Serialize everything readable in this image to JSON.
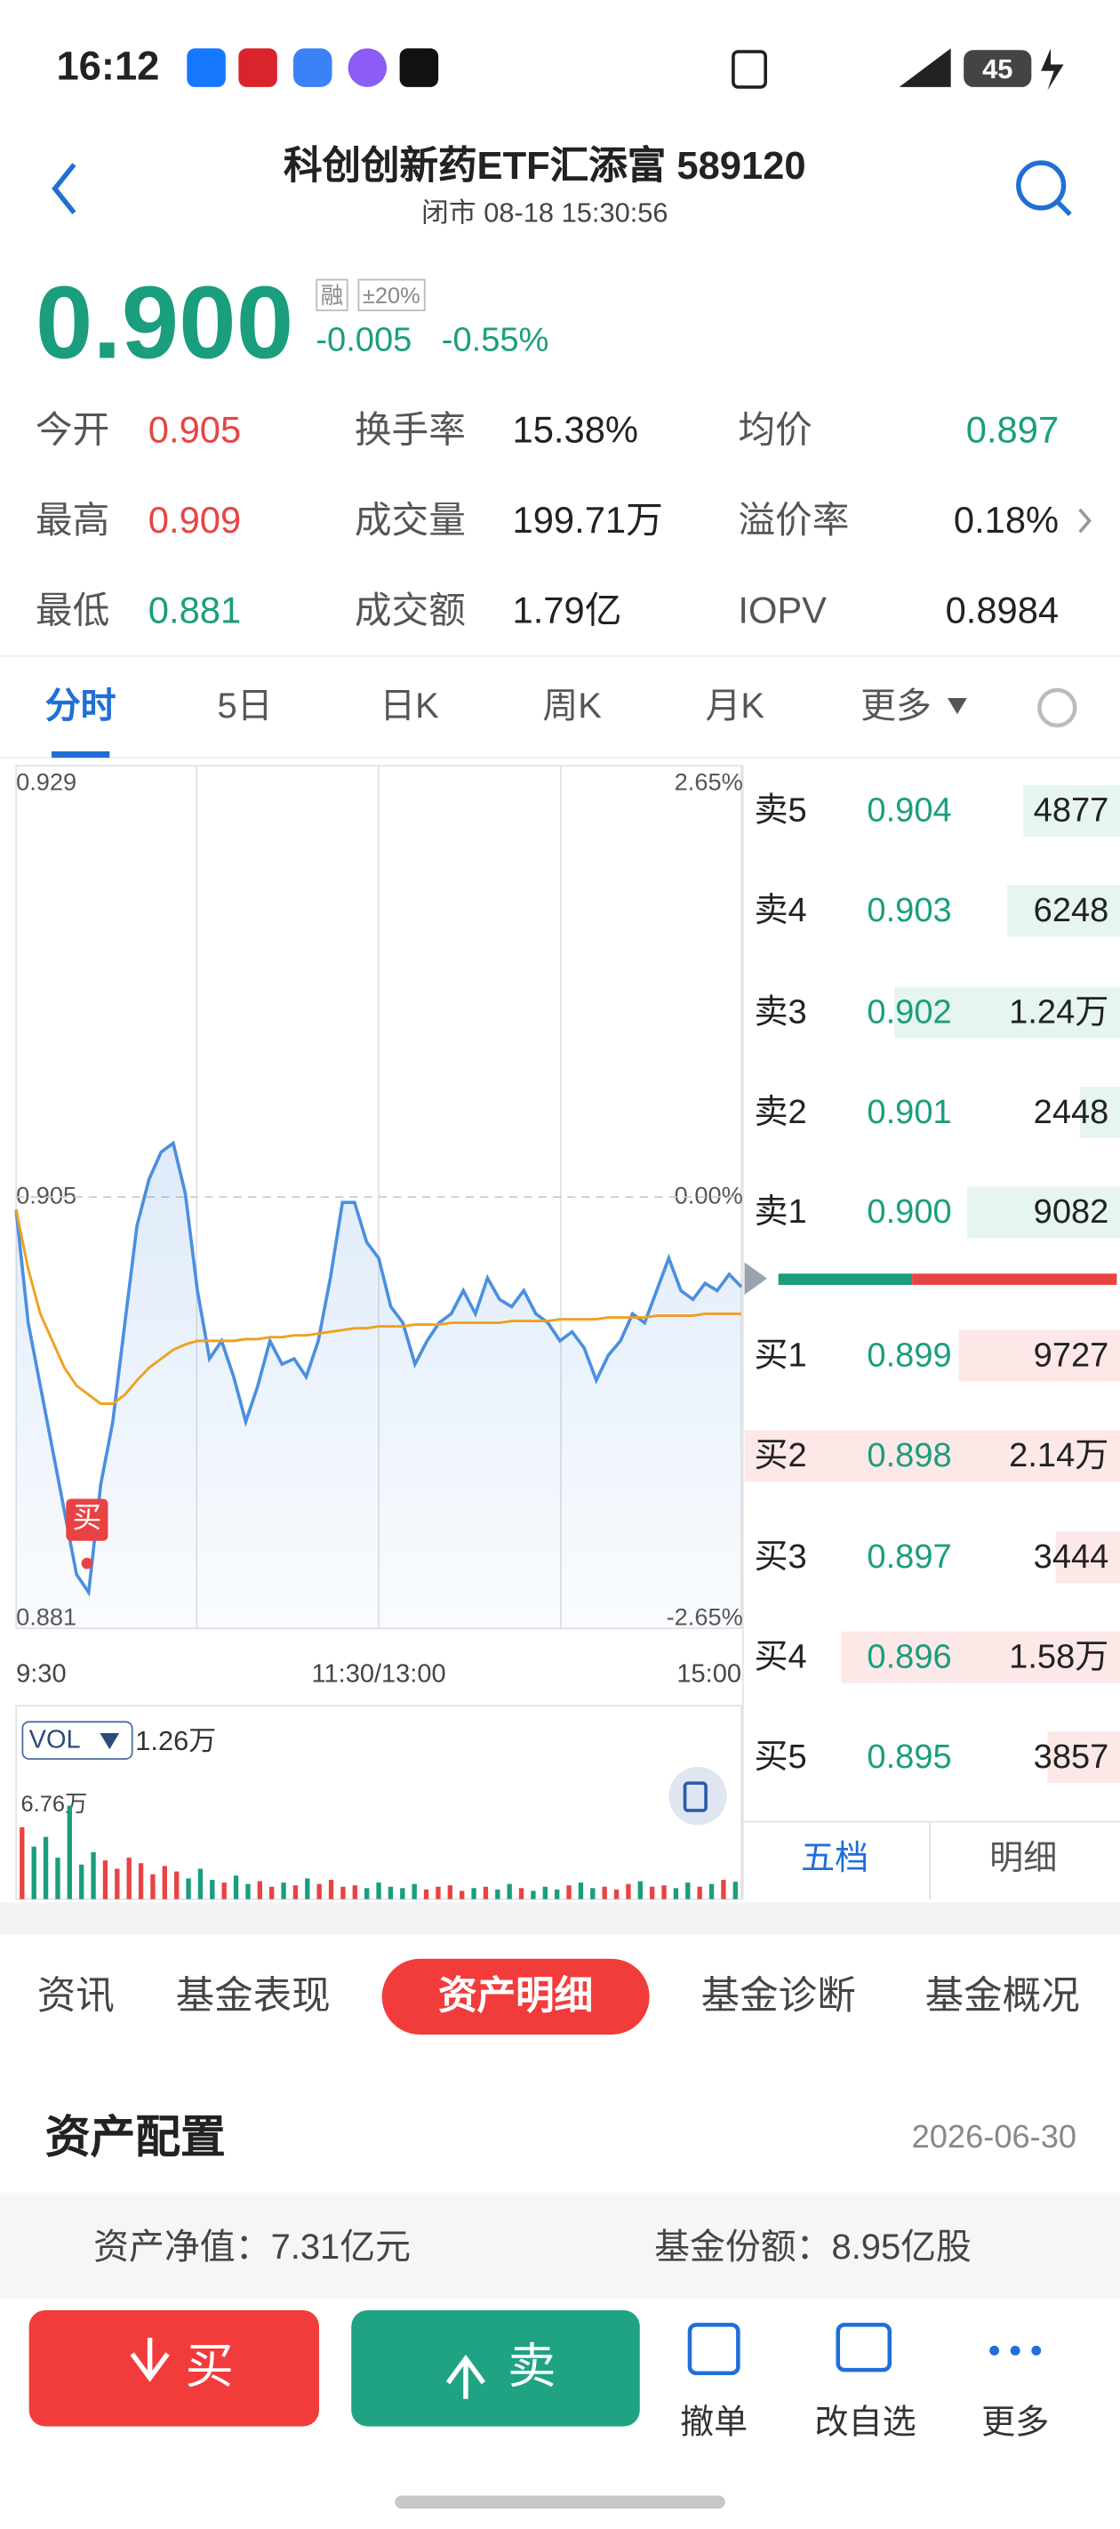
{
  "status_bar": {
    "time": "16:12",
    "battery": "45"
  },
  "header": {
    "title": "科创创新药ETF汇添富 589120",
    "status": "闭市 08-18 15:30:56"
  },
  "quote": {
    "price": "0.900",
    "tags": [
      "融",
      "±20%"
    ],
    "change": "-0.005",
    "change_pct": "-0.55%",
    "color": "#1a9e7d"
  },
  "stats": [
    {
      "label": "今开",
      "value": "0.905",
      "color": "#e84343"
    },
    {
      "label": "换手率",
      "value": "15.38%"
    },
    {
      "label": "均价",
      "value": "0.897",
      "color": "#1a9e7d"
    },
    {
      "label": "最高",
      "value": "0.909",
      "color": "#e84343"
    },
    {
      "label": "成交量",
      "value": "199.71万"
    },
    {
      "label": "溢价率",
      "value": "0.18%"
    },
    {
      "label": "最低",
      "value": "0.881",
      "color": "#1a9e7d"
    },
    {
      "label": "成交额",
      "value": "1.79亿"
    },
    {
      "label": "IOPV",
      "value": "0.8984"
    }
  ],
  "chart_tabs": [
    "分时",
    "5日",
    "日K",
    "周K",
    "月K",
    "更多"
  ],
  "chart_data": [
    {
      "type": "line",
      "marker": "买",
      "categories": [
        "9:30",
        null,
        null,
        null,
        null,
        null,
        null,
        null,
        null,
        null,
        null,
        null,
        null,
        null,
        null,
        null,
        null,
        null,
        null,
        null,
        null,
        null,
        null,
        null,
        null,
        null,
        null,
        null,
        null,
        null,
        "11:30/13:00",
        null,
        null,
        null,
        null,
        null,
        null,
        null,
        null,
        null,
        null,
        null,
        null,
        null,
        null,
        null,
        null,
        null,
        null,
        null,
        null,
        null,
        null,
        null,
        null,
        null,
        null,
        null,
        null,
        null,
        "15:00"
      ],
      "series": [
        {
          "color": "#4a8fe0",
          "values": [
            0.9043,
            0.898,
            0.8945,
            0.891,
            0.8875,
            0.884,
            0.883,
            0.889,
            0.8925,
            0.898,
            0.9034,
            0.906,
            0.9075,
            0.908,
            0.9052,
            0.8998,
            0.896,
            0.897,
            0.895,
            0.8925,
            0.8945,
            0.897,
            0.8957,
            0.896,
            0.895,
            0.897,
            0.9005,
            0.9047,
            0.9047,
            0.9025,
            0.9016,
            0.8989,
            0.898,
            0.8957,
            0.897,
            0.898,
            0.8985,
            0.8998,
            0.8985,
            0.9005,
            0.8993,
            0.8989,
            0.8998,
            0.8985,
            0.898,
            0.897,
            0.8975,
            0.8966,
            0.8948,
            0.8962,
            0.897,
            0.8985,
            0.898,
            0.8998,
            0.9016,
            0.8998,
            0.8993,
            0.9002,
            0.8998,
            0.9007,
            0.9
          ]
        },
        {
          "color": "#f0a020",
          "values": [
            0.9043,
            0.901,
            0.8985,
            0.897,
            0.8955,
            0.8945,
            0.894,
            0.8935,
            0.8935,
            0.894,
            0.8948,
            0.8955,
            0.896,
            0.8965,
            0.8968,
            0.897,
            0.897,
            0.897,
            0.897,
            0.8971,
            0.8971,
            0.8972,
            0.8972,
            0.8973,
            0.8973,
            0.8974,
            0.8975,
            0.8976,
            0.8977,
            0.8977,
            0.8978,
            0.8978,
            0.8978,
            0.8979,
            0.8979,
            0.8979,
            0.898,
            0.898,
            0.898,
            0.898,
            0.898,
            0.8981,
            0.8981,
            0.8981,
            0.8981,
            0.8982,
            0.8982,
            0.8982,
            0.8982,
            0.8983,
            0.8983,
            0.8983,
            0.8983,
            0.8984,
            0.8984,
            0.8984,
            0.8984,
            0.8985,
            0.8985,
            0.8985,
            0.8985
          ]
        }
      ],
      "ylim": [
        0.881,
        0.929
      ],
      "yticks": [
        0.881,
        0.905,
        0.929
      ],
      "y2lim": [
        -2.65,
        2.65
      ],
      "y2ticks": [
        {
          "value": -2.65,
          "label": "-2.65%"
        },
        {
          "value": 0,
          "label": "0.00%"
        },
        {
          "value": 2.65,
          "label": "2.65%"
        }
      ]
    },
    {
      "type": "bar",
      "indicator": "VOL",
      "latest_label": "1.26万",
      "up_color": "#e84343",
      "down_color": "#1a9e7d",
      "values": [
        52000,
        38000,
        45000,
        30000,
        67600,
        25000,
        34000,
        28000,
        22000,
        30000,
        26000,
        18000,
        24000,
        20000,
        15000,
        22000,
        14000,
        12000,
        17000,
        11000,
        13000,
        9000,
        12000,
        10000,
        15000,
        11000,
        14000,
        9000,
        10000,
        8000,
        12000,
        9000,
        8000,
        11000,
        7000,
        9000,
        10000,
        6000,
        8000,
        9000,
        7000,
        11000,
        8000,
        6000,
        9000,
        7000,
        10000,
        12000,
        8000,
        9000,
        7000,
        11000,
        13000,
        9000,
        10000,
        8000,
        12000,
        9000,
        11000,
        14000,
        12600
      ],
      "ylim": [
        0,
        67600
      ],
      "yticks": [
        {
          "value": 67600,
          "label": "6.76万"
        }
      ]
    }
  ],
  "order_book": {
    "asks": [
      {
        "label": "卖5",
        "price": "0.904",
        "volume": "4877"
      },
      {
        "label": "卖4",
        "price": "0.903",
        "volume": "6248"
      },
      {
        "label": "卖3",
        "price": "0.902",
        "volume": "1.24万"
      },
      {
        "label": "卖2",
        "price": "0.901",
        "volume": "2448"
      },
      {
        "label": "卖1",
        "price": "0.900",
        "volume": "9082"
      }
    ],
    "bids": [
      {
        "label": "买1",
        "price": "0.899",
        "volume": "9727"
      },
      {
        "label": "买2",
        "price": "0.898",
        "volume": "2.14万"
      },
      {
        "label": "买3",
        "price": "0.897",
        "volume": "3444"
      },
      {
        "label": "买4",
        "price": "0.896",
        "volume": "1.58万"
      },
      {
        "label": "买5",
        "price": "0.895",
        "volume": "3857"
      }
    ],
    "tabs": [
      "五档",
      "明细"
    ]
  },
  "section_tabs": [
    "资讯",
    "基金表现",
    "资产明细",
    "基金诊断",
    "基金概况"
  ],
  "allocation": {
    "title": "资产配置",
    "date": "2026-06-30",
    "items": [
      {
        "label": "资产净值：",
        "value": "7.31亿元"
      },
      {
        "label": "基金份额：",
        "value": "8.95亿股"
      }
    ]
  },
  "actions": {
    "buy": "买",
    "sell": "卖",
    "tools": [
      "撤单",
      "改自选",
      "更多"
    ]
  }
}
